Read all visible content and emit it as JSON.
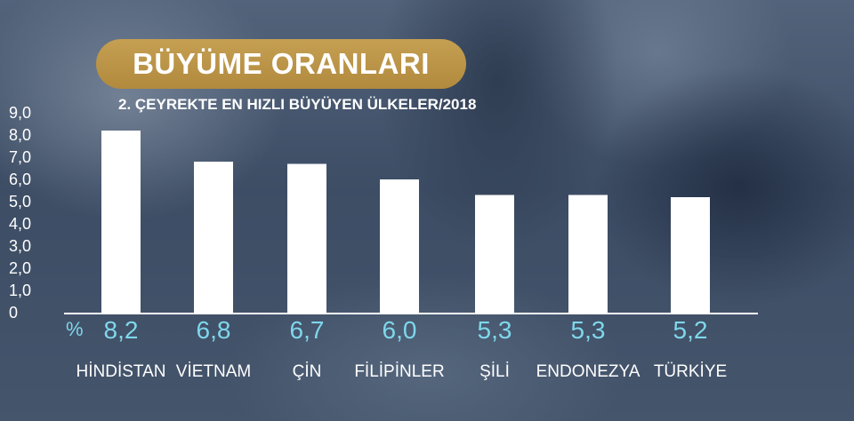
{
  "header": {
    "title": "BÜYÜME ORANLARI",
    "subtitle": "2. ÇEYREKTE EN HIZLI BÜYÜYEN ÜLKELER/2018"
  },
  "colors": {
    "title_pill": "#b8924a",
    "bars": "#ffffff",
    "value_labels": "#7fd7ea"
  },
  "chart_data": {
    "type": "bar",
    "title": "BÜYÜME ORANLARI",
    "subtitle": "2. ÇEYREKTE EN HIZLI BÜYÜYEN ÜLKELER/2018",
    "unit": "%",
    "categories": [
      "HİNDİSTAN",
      "VİETNAM",
      "ÇİN",
      "FİLİPİNLER",
      "ŞİLİ",
      "ENDONEZYA",
      "TÜRKİYE"
    ],
    "values": [
      8.2,
      6.8,
      6.7,
      6.0,
      5.3,
      5.3,
      5.2
    ],
    "value_labels": [
      "8,2",
      "6,8",
      "6,7",
      "6,0",
      "5,3",
      "5,3",
      "5,2"
    ],
    "ylim": [
      0,
      9
    ],
    "y_ticks": [
      "0",
      "1,0",
      "2,0",
      "3,0",
      "4,0",
      "5,0",
      "6,0",
      "7,0",
      "8,0",
      "9,0"
    ],
    "grid": false,
    "legend": "none"
  }
}
